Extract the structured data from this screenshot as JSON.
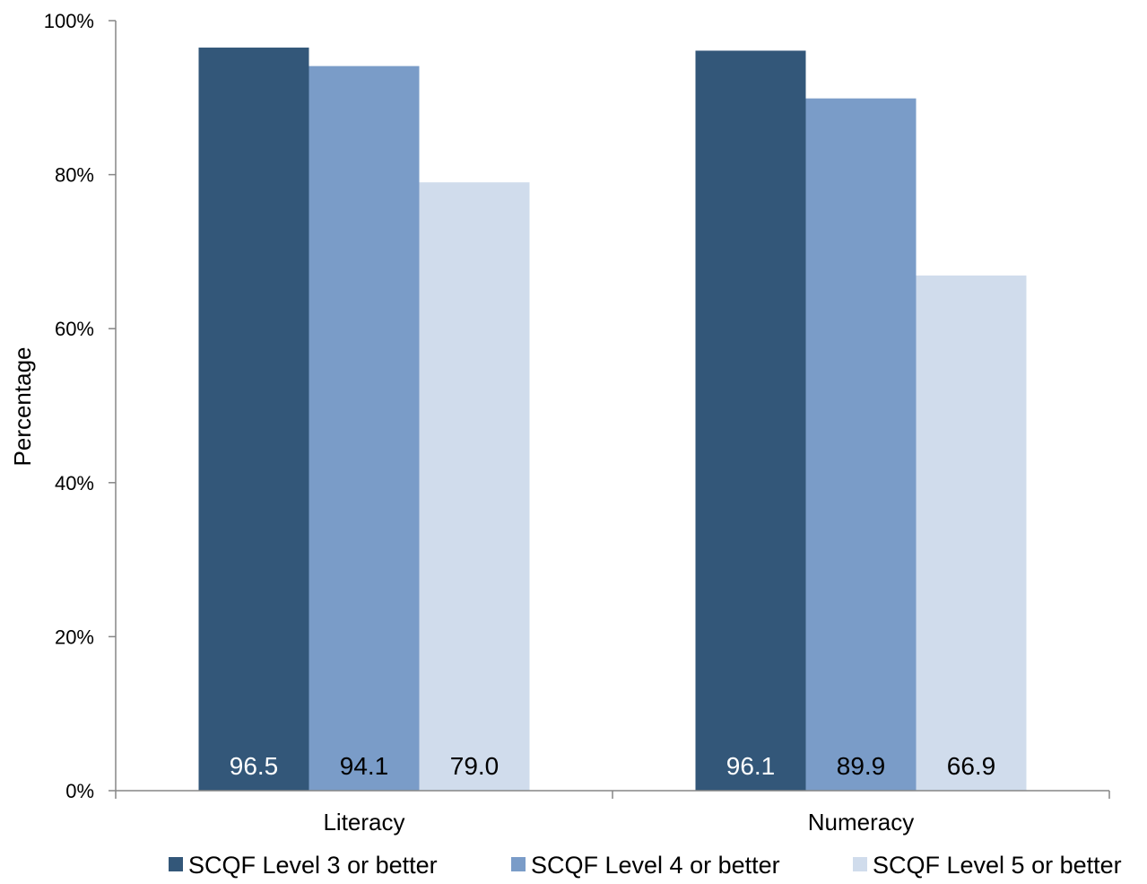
{
  "chart_data": {
    "type": "bar",
    "title": "",
    "xlabel": "",
    "ylabel": "Percentage",
    "ylim": [
      0,
      100
    ],
    "y_ticks": [
      0,
      20,
      40,
      60,
      80,
      100
    ],
    "y_tick_labels": [
      "0%",
      "20%",
      "40%",
      "60%",
      "80%",
      "100%"
    ],
    "grid": false,
    "legend_position": "bottom",
    "categories": [
      "Literacy",
      "Numeracy"
    ],
    "series": [
      {
        "name": "SCQF Level 3 or better",
        "color": "#335779",
        "label_color": "#ffffff",
        "values": [
          96.5,
          96.1
        ],
        "labels": [
          "96.5",
          "96.1"
        ]
      },
      {
        "name": "SCQF Level 4 or better",
        "color": "#7a9cc8",
        "label_color": "#000000",
        "values": [
          94.1,
          89.9
        ],
        "labels": [
          "94.1",
          "89.9"
        ]
      },
      {
        "name": "SCQF Level 5 or better",
        "color": "#d0dcec",
        "label_color": "#000000",
        "values": [
          79.0,
          66.9
        ],
        "labels": [
          "79.0",
          "66.9"
        ]
      }
    ]
  }
}
